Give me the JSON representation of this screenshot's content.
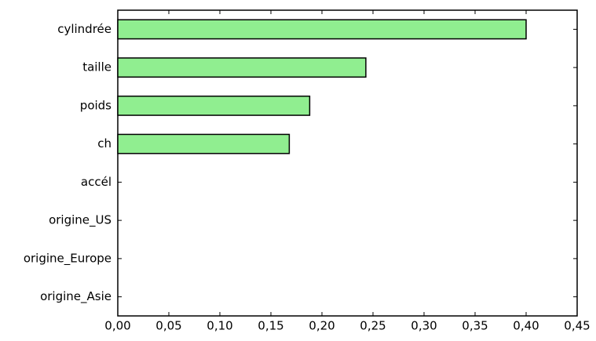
{
  "chart_data": {
    "type": "barh",
    "categories": [
      "cylindrée",
      "taille",
      "poids",
      "ch",
      "accél",
      "origine_US",
      "origine_Europe",
      "origine_Asie"
    ],
    "values": [
      0.4,
      0.243,
      0.188,
      0.168,
      0,
      0,
      0,
      0
    ],
    "color": "#90ee90",
    "edgecolor": "#000000",
    "xlim": [
      0,
      0.45
    ],
    "xticks": [
      {
        "value": 0,
        "label": "0,00"
      },
      {
        "value": 0.05,
        "label": "0,05"
      },
      {
        "value": 0.1,
        "label": "0,10"
      },
      {
        "value": 0.15,
        "label": "0,15"
      },
      {
        "value": 0.2,
        "label": "0,20"
      },
      {
        "value": 0.25,
        "label": "0,25"
      },
      {
        "value": 0.3,
        "label": "0,30"
      },
      {
        "value": 0.35,
        "label": "0,35"
      },
      {
        "value": 0.4,
        "label": "0,40"
      },
      {
        "value": 0.45,
        "label": "0,45"
      }
    ],
    "grid": false
  }
}
